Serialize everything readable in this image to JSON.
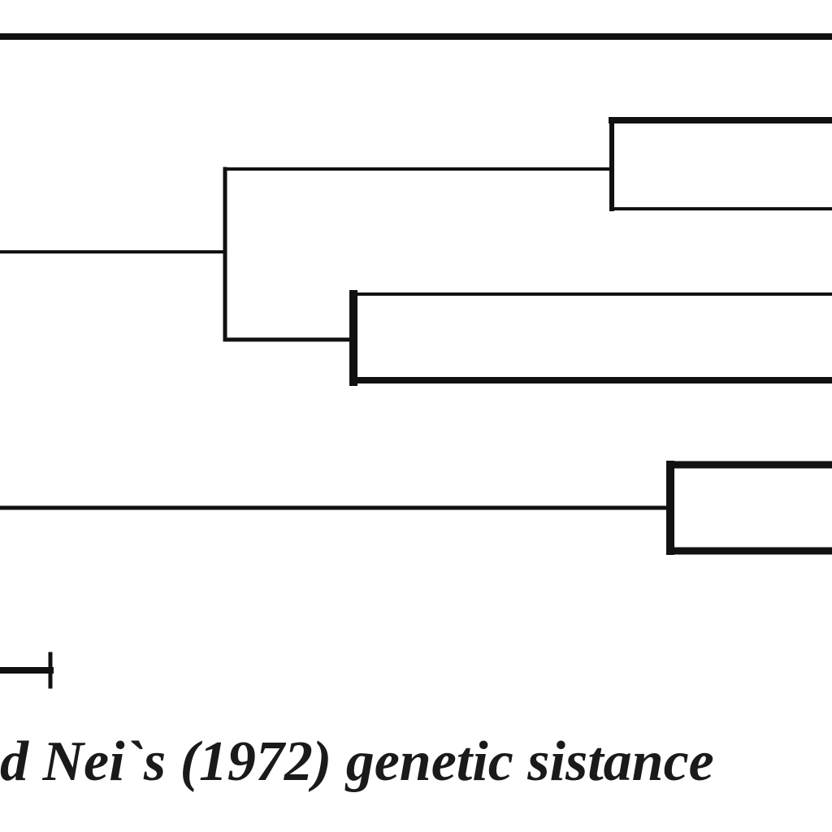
{
  "caption": "d Nei`s (1972) genetic sistance"
}
